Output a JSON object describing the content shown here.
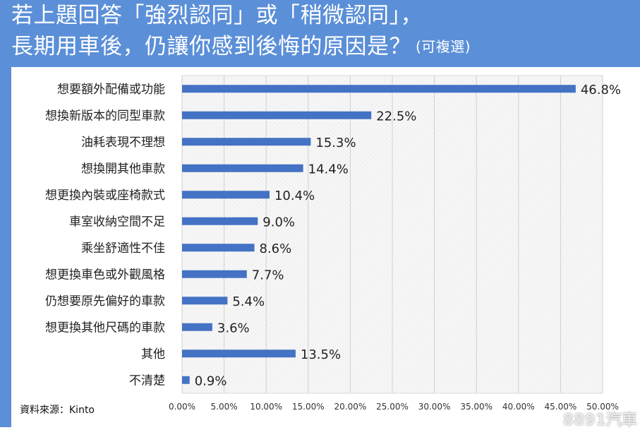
{
  "title": {
    "line1": "若上題回答「強烈認同」或「稍微認同」，",
    "line2": "長期用車後，仍讓你感到後悔的原因是？",
    "note": "(可複選)"
  },
  "source": "資料來源：Kinto",
  "watermark": "8891汽車",
  "colors": {
    "frame": "#5b8fd8",
    "bar": "#4472c4",
    "plot_background": "#f2f2f2"
  },
  "chart_data": {
    "type": "bar",
    "orientation": "horizontal",
    "categories": [
      "想要額外配備或功能",
      "想換新版本的同型車款",
      "油耗表現不理想",
      "想換開其他車款",
      "想更換內裝或座椅款式",
      "車室收納空間不足",
      "乘坐舒適性不佳",
      "想更換車色或外觀風格",
      "仍想要原先偏好的車款",
      "想更換其他尺碼的車款",
      "其他",
      "不清楚"
    ],
    "values": [
      46.8,
      22.5,
      15.3,
      14.4,
      10.4,
      9.0,
      8.6,
      7.7,
      5.4,
      3.6,
      13.5,
      0.9
    ],
    "value_labels": [
      "46.8%",
      "22.5%",
      "15.3%",
      "14.4%",
      "10.4%",
      "9.0%",
      "8.6%",
      "7.7%",
      "5.4%",
      "3.6%",
      "13.5%",
      "0.9%"
    ],
    "x_ticks": [
      "0.00%",
      "5.00%",
      "10.00%",
      "15.00%",
      "20.00%",
      "25.00%",
      "30.00%",
      "35.00%",
      "40.00%",
      "45.00%",
      "50.00%"
    ],
    "xlim": [
      0,
      50
    ],
    "grid": true,
    "legend": "none"
  }
}
